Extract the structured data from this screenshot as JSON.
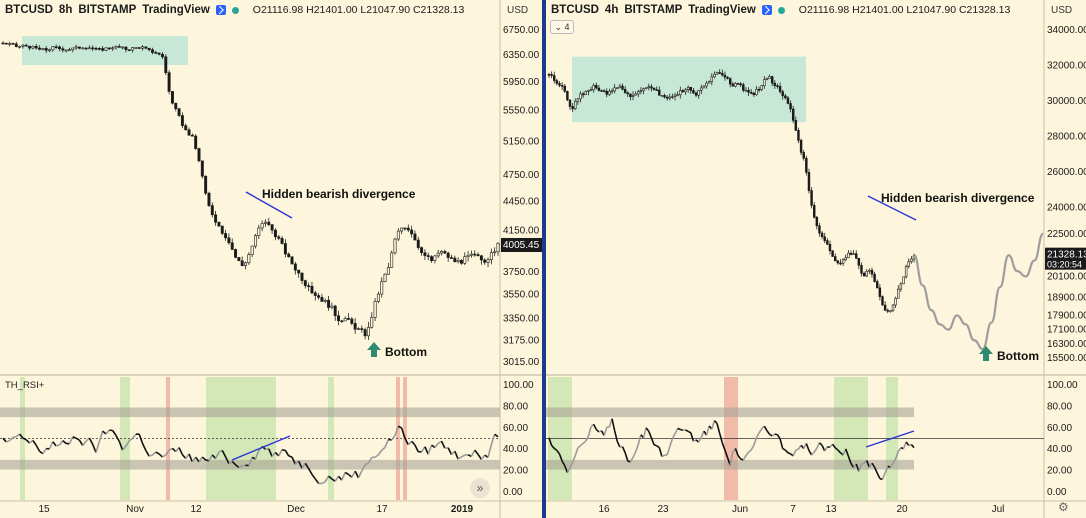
{
  "left": {
    "symbol": "BTCUSD",
    "interval": "8h",
    "exchange": "BITSTAMP",
    "platform": "TradingView",
    "ohlc": "O21116.98 H21401.00 L21047.90 C21328.13",
    "currency": "USD",
    "price_ticks": [
      "6750.00",
      "6350.00",
      "5950.00",
      "5550.00",
      "5150.00",
      "4750.00",
      "4450.00",
      "4150.00",
      "3750.00",
      "3550.00",
      "3350.00",
      "3175.00",
      "3015.00"
    ],
    "last_price": "4005.45",
    "time_ticks": [
      "15",
      "Nov",
      "12",
      "Dec",
      "17",
      "2019"
    ],
    "annotation": "Hidden bearish divergence",
    "bottom_label": "Bottom",
    "rsi_label": "TH_RSI+",
    "rsi_ticks": [
      "100.00",
      "80.00",
      "60.00",
      "40.00",
      "20.00",
      "0.00"
    ],
    "scroll_icon": "»"
  },
  "right": {
    "symbol": "BTCUSD",
    "interval": "4h",
    "exchange": "BITSTAMP",
    "platform": "TradingView",
    "ohlc": "O21116.98 H21401.00 L21047.90 C21328.13",
    "currency": "USD",
    "collapse_label": "4",
    "price_ticks": [
      "34000.00",
      "32000.00",
      "30000.00",
      "28000.00",
      "26000.00",
      "24000.00",
      "22500.00",
      "21328.13",
      "20100.00",
      "18900.00",
      "17900.00",
      "17100.00",
      "16300.00",
      "15500.00"
    ],
    "last_price": "21328.13",
    "countdown": "03:20:54",
    "time_ticks": [
      "16",
      "23",
      "Jun",
      "7",
      "13",
      "20",
      "Jul"
    ],
    "annotation": "Hidden bearish divergence",
    "bottom_label": "Bottom",
    "rsi_ticks": [
      "100.00",
      "80.00",
      "60.00",
      "40.00",
      "20.00",
      "0.00"
    ],
    "settings_icon": "⚙"
  },
  "chart_data": [
    {
      "type": "candlestick",
      "name_shown": "BTCUSD 8h BITSTAMP",
      "ylim": [
        3015,
        6750
      ],
      "x_labels": [
        "15",
        "Nov",
        "12",
        "Dec",
        "17",
        "2019"
      ],
      "close_path": [
        6540,
        6520,
        6480,
        6500,
        6470,
        6440,
        6430,
        6470,
        6450,
        6440,
        6460,
        6480,
        6470,
        6430,
        6450,
        6480,
        6470,
        6440,
        6460,
        6480,
        6420,
        6390,
        6320,
        5700,
        5500,
        5300,
        5200,
        4900,
        4450,
        4280,
        4150,
        4050,
        3880,
        3800,
        3950,
        4150,
        4250,
        4150,
        4050,
        3900,
        3800,
        3700,
        3600,
        3550,
        3500,
        3450,
        3350,
        3350,
        3300,
        3250,
        3220,
        3450,
        3650,
        3800,
        4100,
        4200,
        4150,
        4000,
        3900,
        3850,
        3950,
        3900,
        3850,
        3850,
        3900,
        3900,
        3850,
        3900,
        4005.45
      ],
      "consolidation_zone": [
        6200,
        6650
      ],
      "last_price": 4005.45
    },
    {
      "type": "candlestick",
      "name_shown": "BTCUSD 4h BITSTAMP",
      "ylim": [
        15500,
        34000
      ],
      "x_labels": [
        "16",
        "23",
        "Jun",
        "7",
        "13",
        "20",
        "Jul"
      ],
      "close_path": [
        31500,
        31000,
        30800,
        29500,
        30200,
        30500,
        30800,
        30600,
        30400,
        30800,
        30700,
        30300,
        30500,
        30600,
        30800,
        30400,
        30200,
        30300,
        30500,
        30800,
        30300,
        30700,
        31200,
        31600,
        31400,
        30900,
        31000,
        30500,
        30400,
        30800,
        31400,
        30900,
        30400,
        29800,
        28000,
        26500,
        24000,
        22500,
        22000,
        21000,
        20800,
        21500,
        21200,
        20100,
        20500,
        19400,
        18100,
        18300,
        19500,
        20700,
        21328.13
      ],
      "consolidation_zone": [
        28800,
        32500
      ],
      "projection": [
        21328.13,
        19600,
        18200,
        17400,
        17100,
        17900,
        17400,
        16500,
        16000,
        17500,
        19500,
        21300,
        20400,
        20100,
        21000,
        22500
      ],
      "last_price": 21328.13
    }
  ]
}
